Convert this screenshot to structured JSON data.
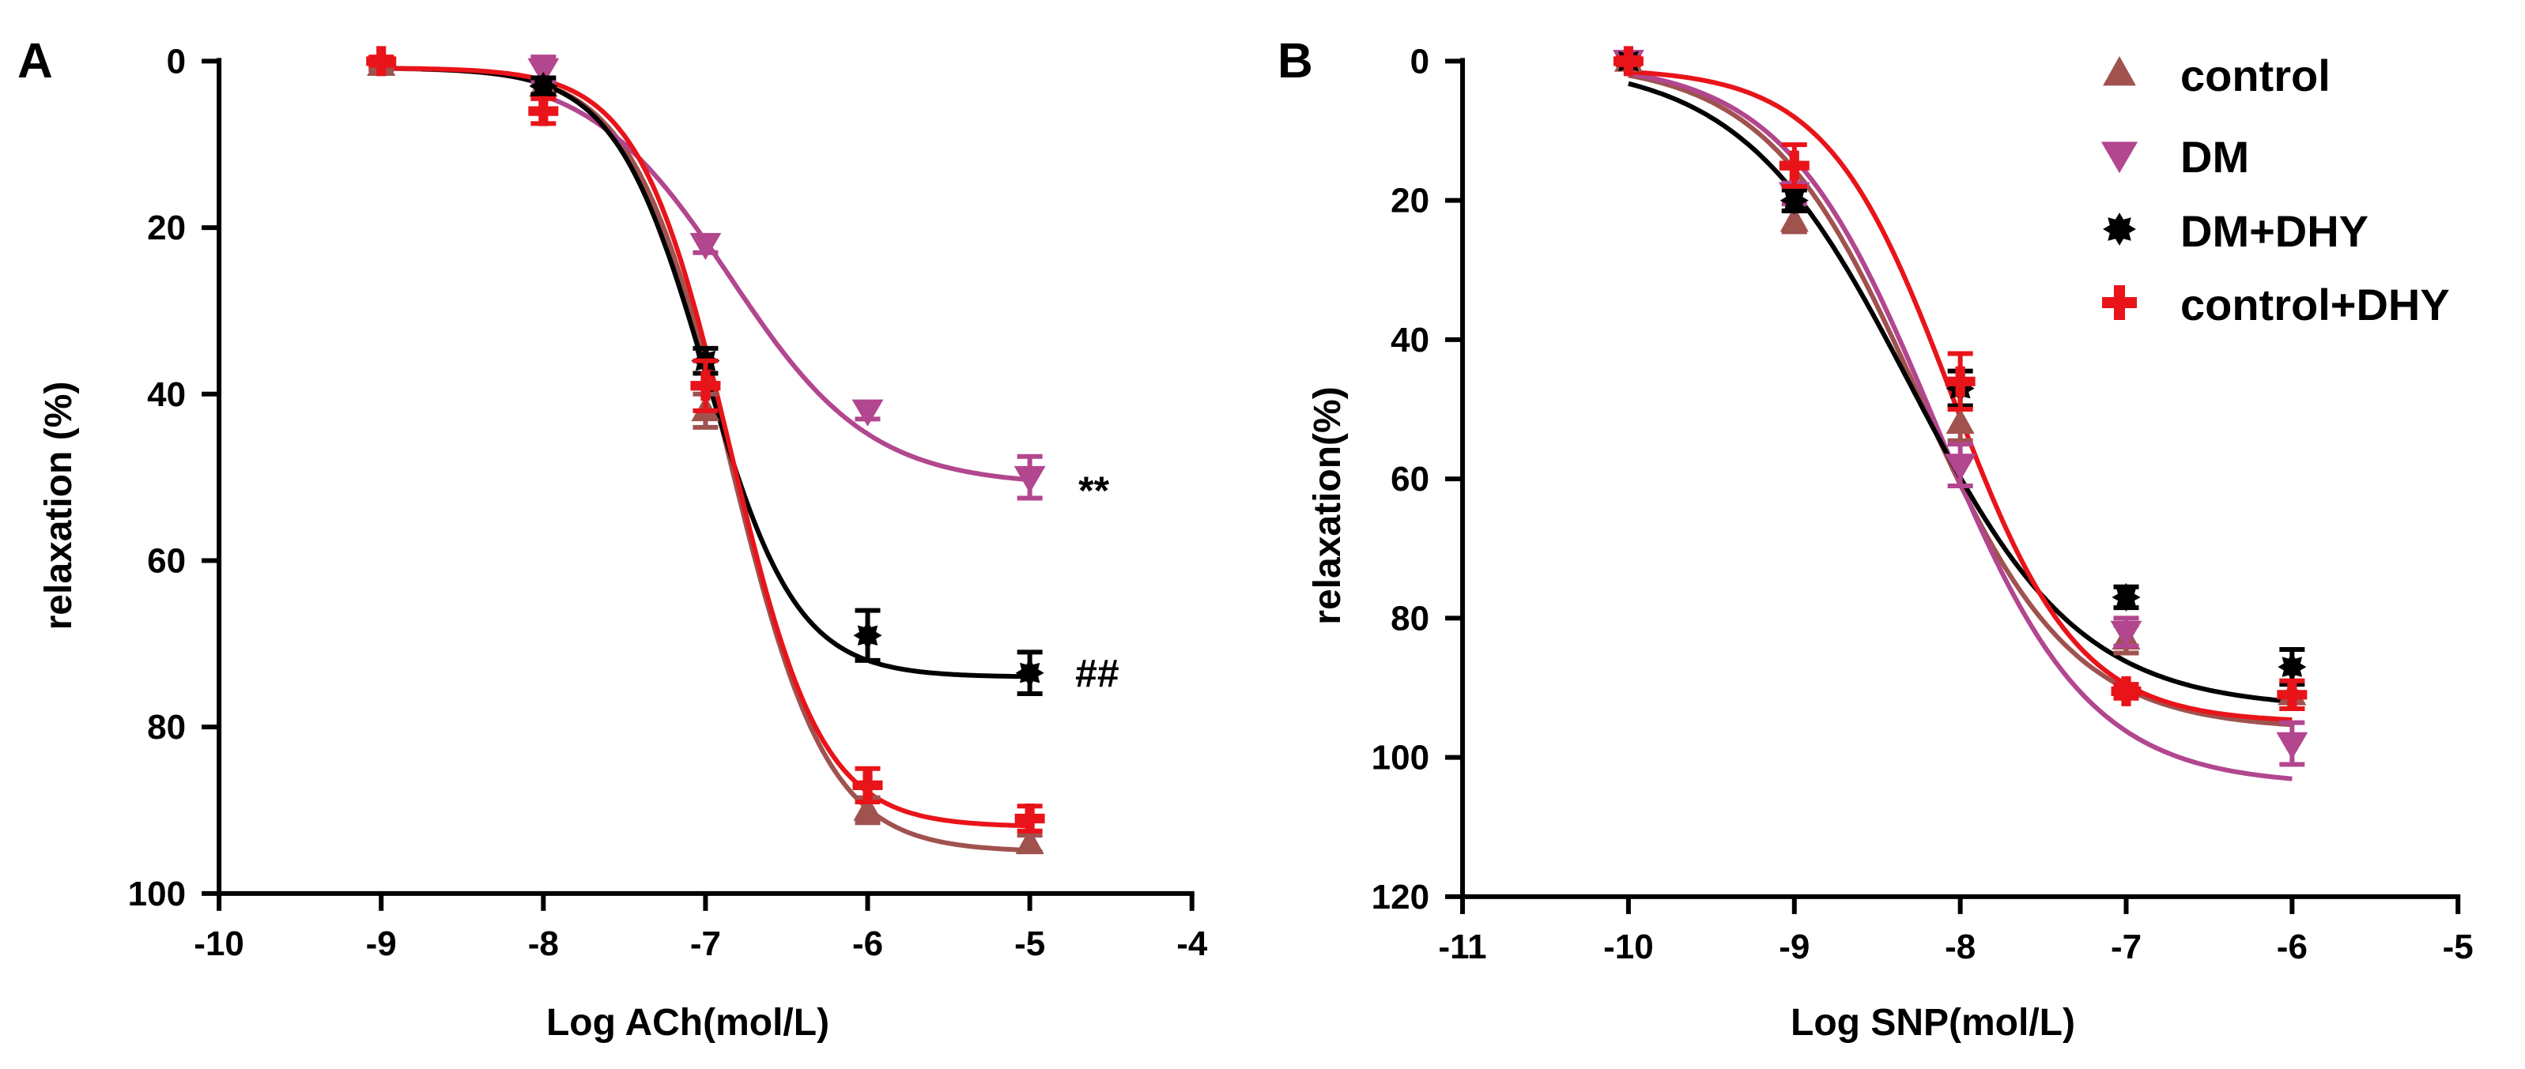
{
  "series_colors": {
    "control": "#A0524F",
    "DM": "#B2468F",
    "DM+DHY": "#000000",
    "control+DHY": "#E8141A"
  },
  "legend": [
    {
      "name": "control",
      "marker": "triangle-up"
    },
    {
      "name": "DM",
      "marker": "triangle-down"
    },
    {
      "name": "DM+DHY",
      "marker": "star"
    },
    {
      "name": "control+DHY",
      "marker": "plus"
    }
  ],
  "chart_data": [
    {
      "panel": "A",
      "type": "scatter",
      "xlabel": "Log ACh(mol/L)",
      "ylabel": "relaxation (%)",
      "xlim": [
        -10,
        -4
      ],
      "ylim": [
        0,
        100
      ],
      "y_inverted": true,
      "xticks": [
        -10,
        -9,
        -8,
        -7,
        -6,
        -5,
        -4
      ],
      "yticks": [
        0,
        20,
        40,
        60,
        80,
        100
      ],
      "series": [
        {
          "name": "control",
          "x": [
            -9,
            -8,
            -7,
            -6,
            -5
          ],
          "values": [
            0.5,
            3,
            42,
            90,
            94
          ],
          "errors": [
            0.5,
            1,
            2,
            1.5,
            1
          ]
        },
        {
          "name": "DM",
          "x": [
            -8,
            -7,
            -6,
            -5
          ],
          "values": [
            1,
            22,
            42,
            50
          ],
          "errors": [
            1.5,
            1,
            1,
            2.5
          ]
        },
        {
          "name": "DM+DHY",
          "x": [
            -8,
            -7,
            -6,
            -5
          ],
          "values": [
            3,
            36,
            69,
            73.5
          ],
          "errors": [
            1,
            1.5,
            3,
            2.5
          ]
        },
        {
          "name": "control+DHY",
          "x": [
            -9,
            -8,
            -7,
            -6,
            -5
          ],
          "values": [
            0,
            6,
            39,
            87,
            91
          ],
          "errors": [
            0.5,
            1.5,
            3,
            2,
            1.5
          ]
        }
      ],
      "fits": [
        {
          "name": "control",
          "bottom": 0.8,
          "top": 95,
          "logEC50": -6.85,
          "hill": 1.45
        },
        {
          "name": "DM",
          "bottom": 0.8,
          "top": 51,
          "logEC50": -6.85,
          "hill": 1.0
        },
        {
          "name": "DM+DHY",
          "bottom": 0.8,
          "top": 74,
          "logEC50": -7.0,
          "hill": 1.55
        },
        {
          "name": "control+DHY",
          "bottom": 0.8,
          "top": 92,
          "logEC50": -6.85,
          "hill": 1.55
        }
      ],
      "annotations": [
        {
          "text": "**",
          "x": -4.7,
          "y": 51.5
        },
        {
          "text": "##",
          "x": -4.72,
          "y": 73.5
        }
      ]
    },
    {
      "panel": "B",
      "type": "scatter",
      "xlabel": "Log SNP(mol/L)",
      "ylabel": "relaxation(%)",
      "xlim": [
        -11,
        -5
      ],
      "ylim": [
        0,
        120
      ],
      "y_inverted": true,
      "xticks": [
        -11,
        -10,
        -9,
        -8,
        -7,
        -6,
        -5
      ],
      "yticks": [
        0,
        20,
        40,
        60,
        80,
        100,
        120
      ],
      "series": [
        {
          "name": "control",
          "x": [
            -10,
            -9,
            -8,
            -7,
            -6
          ],
          "values": [
            0,
            23,
            52,
            83,
            91
          ],
          "errors": [
            0.5,
            1.5,
            2.5,
            2,
            2
          ]
        },
        {
          "name": "DM",
          "x": [
            -10,
            -9,
            -8,
            -7,
            -6
          ],
          "values": [
            0,
            19,
            58,
            82,
            98
          ],
          "errors": [
            0.5,
            1.5,
            3,
            2,
            3
          ]
        },
        {
          "name": "DM+DHY",
          "x": [
            -10,
            -9,
            -8,
            -7,
            -6
          ],
          "values": [
            0,
            20,
            47,
            77,
            87
          ],
          "errors": [
            0.5,
            1.5,
            2.5,
            1.5,
            2.5
          ]
        },
        {
          "name": "control+DHY",
          "x": [
            -10,
            -9,
            -8,
            -7,
            -6
          ],
          "values": [
            0,
            15,
            46,
            90.5,
            91
          ],
          "errors": [
            0.5,
            3,
            4,
            1,
            2
          ]
        }
      ],
      "fits": [
        {
          "name": "control",
          "bottom": 0,
          "top": 96,
          "logEC50": -8.25,
          "hill": 0.95
        },
        {
          "name": "DM",
          "bottom": 0,
          "top": 104,
          "logEC50": -8.15,
          "hill": 0.95
        },
        {
          "name": "DM+DHY",
          "bottom": 0,
          "top": 93,
          "logEC50": -8.3,
          "hill": 0.85
        },
        {
          "name": "control+DHY",
          "bottom": 1,
          "top": 95,
          "logEC50": -8.05,
          "hill": 1.15
        }
      ],
      "annotations": []
    }
  ]
}
